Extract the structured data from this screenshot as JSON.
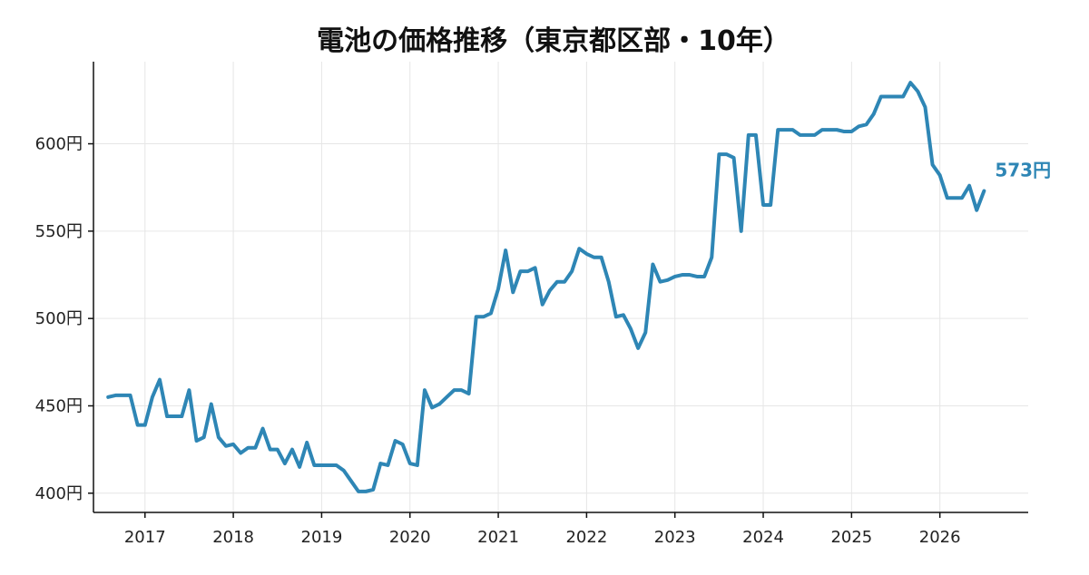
{
  "chart_data": {
    "type": "line",
    "title": "電池の価格推移（東京都区部・10年）",
    "xlabel": "",
    "ylabel": "",
    "x_ticks": [
      "2017",
      "2018",
      "2019",
      "2020",
      "2021",
      "2022",
      "2023",
      "2024",
      "2025",
      "2026"
    ],
    "y_ticks": [
      "400円",
      "450円",
      "500円",
      "550円",
      "600円"
    ],
    "y_tick_values": [
      400,
      450,
      500,
      550,
      600
    ],
    "xlim": [
      "2016-06",
      "2027-01"
    ],
    "ylim": [
      389,
      647
    ],
    "grid": true,
    "color": "#2e86b5",
    "end_label": "573円",
    "series": [
      {
        "values": [
          {
            "x": "2016-08",
            "y": 455
          },
          {
            "x": "2016-09",
            "y": 456
          },
          {
            "x": "2016-10",
            "y": 456
          },
          {
            "x": "2016-11",
            "y": 456
          },
          {
            "x": "2016-12",
            "y": 439
          },
          {
            "x": "2017-01",
            "y": 439
          },
          {
            "x": "2017-02",
            "y": 455
          },
          {
            "x": "2017-03",
            "y": 465
          },
          {
            "x": "2017-04",
            "y": 444
          },
          {
            "x": "2017-05",
            "y": 444
          },
          {
            "x": "2017-06",
            "y": 444
          },
          {
            "x": "2017-07",
            "y": 459
          },
          {
            "x": "2017-08",
            "y": 430
          },
          {
            "x": "2017-09",
            "y": 432
          },
          {
            "x": "2017-10",
            "y": 451
          },
          {
            "x": "2017-11",
            "y": 432
          },
          {
            "x": "2017-12",
            "y": 427
          },
          {
            "x": "2018-01",
            "y": 428
          },
          {
            "x": "2018-02",
            "y": 423
          },
          {
            "x": "2018-03",
            "y": 426
          },
          {
            "x": "2018-04",
            "y": 426
          },
          {
            "x": "2018-05",
            "y": 437
          },
          {
            "x": "2018-06",
            "y": 425
          },
          {
            "x": "2018-07",
            "y": 425
          },
          {
            "x": "2018-08",
            "y": 417
          },
          {
            "x": "2018-09",
            "y": 425
          },
          {
            "x": "2018-10",
            "y": 415
          },
          {
            "x": "2018-11",
            "y": 429
          },
          {
            "x": "2018-12",
            "y": 416
          },
          {
            "x": "2019-01",
            "y": 416
          },
          {
            "x": "2019-02",
            "y": 416
          },
          {
            "x": "2019-03",
            "y": 416
          },
          {
            "x": "2019-04",
            "y": 413
          },
          {
            "x": "2019-05",
            "y": 407
          },
          {
            "x": "2019-06",
            "y": 401
          },
          {
            "x": "2019-07",
            "y": 401
          },
          {
            "x": "2019-08",
            "y": 402
          },
          {
            "x": "2019-09",
            "y": 417
          },
          {
            "x": "2019-10",
            "y": 416
          },
          {
            "x": "2019-11",
            "y": 430
          },
          {
            "x": "2019-12",
            "y": 428
          },
          {
            "x": "2020-01",
            "y": 417
          },
          {
            "x": "2020-02",
            "y": 416
          },
          {
            "x": "2020-03",
            "y": 459
          },
          {
            "x": "2020-04",
            "y": 449
          },
          {
            "x": "2020-05",
            "y": 451
          },
          {
            "x": "2020-06",
            "y": 455
          },
          {
            "x": "2020-07",
            "y": 459
          },
          {
            "x": "2020-08",
            "y": 459
          },
          {
            "x": "2020-09",
            "y": 457
          },
          {
            "x": "2020-10",
            "y": 501
          },
          {
            "x": "2020-11",
            "y": 501
          },
          {
            "x": "2020-12",
            "y": 503
          },
          {
            "x": "2021-01",
            "y": 517
          },
          {
            "x": "2021-02",
            "y": 539
          },
          {
            "x": "2021-03",
            "y": 515
          },
          {
            "x": "2021-04",
            "y": 527
          },
          {
            "x": "2021-05",
            "y": 527
          },
          {
            "x": "2021-06",
            "y": 529
          },
          {
            "x": "2021-07",
            "y": 508
          },
          {
            "x": "2021-08",
            "y": 516
          },
          {
            "x": "2021-09",
            "y": 521
          },
          {
            "x": "2021-10",
            "y": 521
          },
          {
            "x": "2021-11",
            "y": 527
          },
          {
            "x": "2021-12",
            "y": 540
          },
          {
            "x": "2022-01",
            "y": 537
          },
          {
            "x": "2022-02",
            "y": 535
          },
          {
            "x": "2022-03",
            "y": 535
          },
          {
            "x": "2022-04",
            "y": 521
          },
          {
            "x": "2022-05",
            "y": 501
          },
          {
            "x": "2022-06",
            "y": 502
          },
          {
            "x": "2022-07",
            "y": 494
          },
          {
            "x": "2022-08",
            "y": 483
          },
          {
            "x": "2022-09",
            "y": 492
          },
          {
            "x": "2022-10",
            "y": 531
          },
          {
            "x": "2022-11",
            "y": 521
          },
          {
            "x": "2022-12",
            "y": 522
          },
          {
            "x": "2023-01",
            "y": 524
          },
          {
            "x": "2023-02",
            "y": 525
          },
          {
            "x": "2023-03",
            "y": 525
          },
          {
            "x": "2023-04",
            "y": 524
          },
          {
            "x": "2023-05",
            "y": 524
          },
          {
            "x": "2023-06",
            "y": 535
          },
          {
            "x": "2023-07",
            "y": 594
          },
          {
            "x": "2023-08",
            "y": 594
          },
          {
            "x": "2023-09",
            "y": 592
          },
          {
            "x": "2023-10",
            "y": 550
          },
          {
            "x": "2023-11",
            "y": 605
          },
          {
            "x": "2023-12",
            "y": 605
          },
          {
            "x": "2024-01",
            "y": 565
          },
          {
            "x": "2024-02",
            "y": 565
          },
          {
            "x": "2024-03",
            "y": 608
          },
          {
            "x": "2024-04",
            "y": 608
          },
          {
            "x": "2024-05",
            "y": 608
          },
          {
            "x": "2024-06",
            "y": 605
          },
          {
            "x": "2024-07",
            "y": 605
          },
          {
            "x": "2024-08",
            "y": 605
          },
          {
            "x": "2024-09",
            "y": 608
          },
          {
            "x": "2024-10",
            "y": 608
          },
          {
            "x": "2024-11",
            "y": 608
          },
          {
            "x": "2024-12",
            "y": 607
          },
          {
            "x": "2025-01",
            "y": 607
          },
          {
            "x": "2025-02",
            "y": 610
          },
          {
            "x": "2025-03",
            "y": 611
          },
          {
            "x": "2025-04",
            "y": 617
          },
          {
            "x": "2025-05",
            "y": 627
          },
          {
            "x": "2025-06",
            "y": 627
          },
          {
            "x": "2025-07",
            "y": 627
          },
          {
            "x": "2025-08",
            "y": 627
          },
          {
            "x": "2025-09",
            "y": 635
          },
          {
            "x": "2025-10",
            "y": 630
          },
          {
            "x": "2025-11",
            "y": 621
          },
          {
            "x": "2025-12",
            "y": 588
          },
          {
            "x": "2026-01",
            "y": 582
          },
          {
            "x": "2026-02",
            "y": 569
          },
          {
            "x": "2026-03",
            "y": 569
          },
          {
            "x": "2026-04",
            "y": 569
          },
          {
            "x": "2026-05",
            "y": 576
          },
          {
            "x": "2026-06",
            "y": 562
          },
          {
            "x": "2026-07",
            "y": 573
          }
        ]
      }
    ]
  }
}
